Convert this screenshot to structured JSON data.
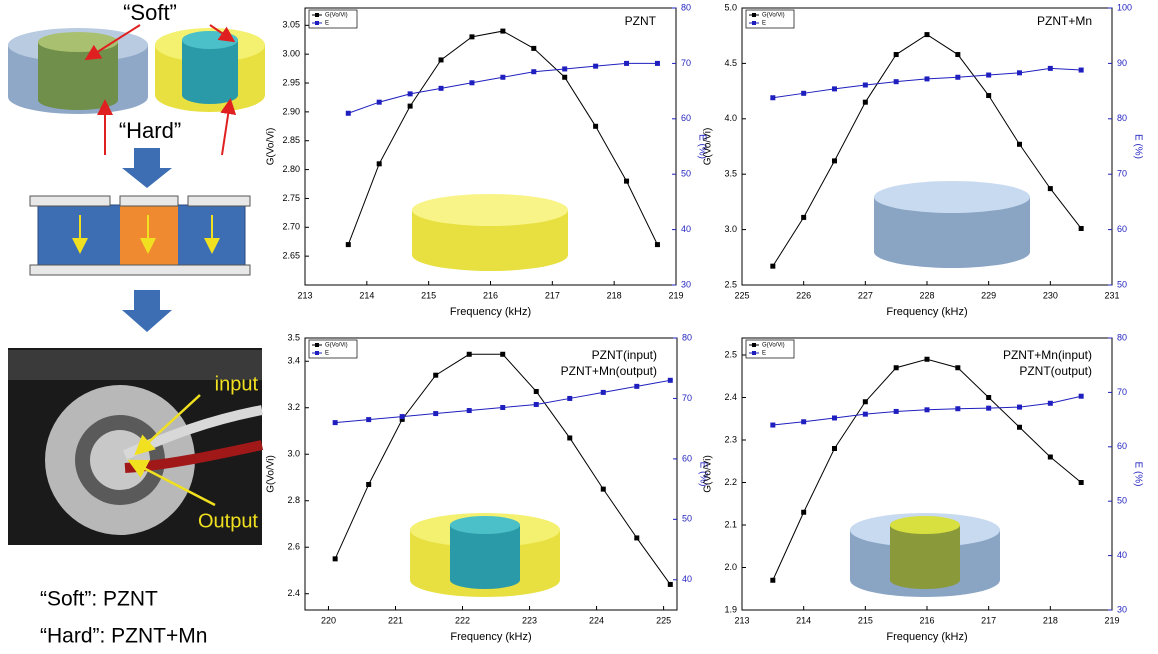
{
  "diagram": {
    "soft_label": "“Soft”",
    "hard_label": "“Hard”",
    "input_label": "input",
    "output_label": "Output",
    "legend_soft": "“Soft”: PZNT",
    "legend_hard": "“Hard”: PZNT+Mn"
  },
  "chart_data": [
    {
      "type": "line",
      "annotations": [
        "PZNT"
      ],
      "x": [
        213.7,
        214.2,
        214.7,
        215.2,
        215.7,
        216.2,
        216.7,
        217.2,
        217.7,
        218.2,
        218.7
      ],
      "series": [
        {
          "name": "G(Vo/Vi)",
          "color": "#000000",
          "values": [
            2.67,
            2.81,
            2.91,
            2.99,
            3.03,
            3.04,
            3.01,
            2.96,
            2.875,
            2.78,
            2.67
          ]
        },
        {
          "name": "E",
          "color": "#1f1fbf",
          "axis": "y2",
          "values": [
            61,
            63,
            64.5,
            65.5,
            66.5,
            67.5,
            68.5,
            69,
            69.5,
            70,
            70
          ]
        }
      ],
      "xlim": [
        213,
        219
      ],
      "xticks": [
        213,
        214,
        215,
        216,
        217,
        218,
        219
      ],
      "ylim": [
        2.6,
        3.08
      ],
      "yticks": [
        2.65,
        {
          "value": 2.7,
          "label": "2.70"
        },
        2.75,
        {
          "value": 2.8,
          "label": "2.80"
        },
        2.85,
        {
          "value": 2.9,
          "label": "2.90"
        },
        2.95,
        {
          "value": 3,
          "label": "3.00"
        },
        3.05
      ],
      "y2lim": [
        30,
        80
      ],
      "y2ticks": [
        30,
        40,
        50,
        60,
        70,
        80
      ],
      "x_label": "Frequency (kHz)",
      "y_label": "G(Vo/Vi)",
      "y2_label": "E (%)"
    },
    {
      "type": "line",
      "annotations": [
        "PZNT+Mn"
      ],
      "x": [
        225.5,
        226,
        226.5,
        227,
        227.5,
        228,
        228.5,
        229,
        229.5,
        230,
        230.5
      ],
      "series": [
        {
          "name": "G(Vo/Vi)",
          "color": "#000000",
          "values": [
            2.67,
            3.11,
            3.62,
            4.15,
            4.58,
            4.76,
            4.58,
            4.21,
            3.77,
            3.37,
            3.01
          ]
        },
        {
          "name": "E",
          "color": "#1f1fbf",
          "axis": "y2",
          "values": [
            83.8,
            84.6,
            85.4,
            86.1,
            86.7,
            87.2,
            87.5,
            87.9,
            88.3,
            89.1,
            88.8
          ]
        }
      ],
      "xlim": [
        225,
        231
      ],
      "xticks": [
        225,
        226,
        227,
        228,
        229,
        230,
        231
      ],
      "ylim": [
        2.5,
        5
      ],
      "yticks": [
        2.5,
        {
          "value": 3,
          "label": "3.0"
        },
        3.5,
        {
          "value": 4,
          "label": "4.0"
        },
        4.5,
        {
          "value": 5,
          "label": "5.0"
        }
      ],
      "y2lim": [
        50,
        100
      ],
      "y2ticks": [
        50,
        60,
        70,
        80,
        90,
        100
      ],
      "x_label": "Frequency (kHz)",
      "y_label": "G(Vo/Vi)",
      "y2_label": "E (%)"
    },
    {
      "type": "line",
      "annotations": [
        "PZNT(input)",
        "PZNT+Mn(output)"
      ],
      "x": [
        220.1,
        220.6,
        221.1,
        221.6,
        222.1,
        222.6,
        223.1,
        223.6,
        224.1,
        224.6,
        225.1
      ],
      "series": [
        {
          "name": "G(Vo/Vi)",
          "color": "#000000",
          "values": [
            2.55,
            2.87,
            3.15,
            3.34,
            3.43,
            3.43,
            3.27,
            3.07,
            2.85,
            2.64,
            2.44
          ]
        },
        {
          "name": "E",
          "color": "#1f1fbf",
          "axis": "y2",
          "values": [
            66,
            66.5,
            67,
            67.5,
            68,
            68.5,
            69,
            70,
            71,
            72,
            73
          ]
        }
      ],
      "xlim": [
        219.65,
        225.2
      ],
      "xticks": [
        220,
        221,
        222,
        223,
        224,
        225
      ],
      "ylim": [
        2.33,
        3.5
      ],
      "yticks": [
        2.4,
        2.6,
        2.8,
        {
          "value": 3,
          "label": "3.0"
        },
        3.2,
        3.4,
        3.5
      ],
      "y2lim": [
        35,
        80
      ],
      "y2ticks": [
        40,
        50,
        60,
        70,
        80
      ],
      "x_label": "Frequency (kHz)",
      "y_label": "G(Vo/Vi)",
      "y2_label": "E (%)"
    },
    {
      "type": "line",
      "annotations": [
        "PZNT+Mn(input)",
        "PZNT(output)"
      ],
      "x": [
        213.5,
        214,
        214.5,
        215,
        215.5,
        216,
        216.5,
        217,
        217.5,
        218,
        218.5
      ],
      "series": [
        {
          "name": "G(Vo/Vi)",
          "color": "#000000",
          "values": [
            1.97,
            2.13,
            2.28,
            2.39,
            2.47,
            2.49,
            2.47,
            2.4,
            2.33,
            2.26,
            2.2
          ]
        },
        {
          "name": "E",
          "color": "#1f1fbf",
          "axis": "y2",
          "values": [
            64,
            64.6,
            65.3,
            66,
            66.5,
            66.8,
            67,
            67.1,
            67.3,
            68,
            69.3
          ]
        }
      ],
      "xlim": [
        213,
        219
      ],
      "xticks": [
        213,
        214,
        215,
        216,
        217,
        218,
        219
      ],
      "ylim": [
        1.9,
        2.54
      ],
      "yticks": [
        1.9,
        {
          "value": 2,
          "label": "2.0"
        },
        2.1,
        2.2,
        2.3,
        2.4,
        2.5
      ],
      "y2lim": [
        30,
        80
      ],
      "y2ticks": [
        30,
        40,
        50,
        60,
        70,
        80
      ],
      "x_label": "Frequency (kHz)",
      "y_label": "G(Vo/Vi)",
      "y2_label": "E (%)"
    }
  ]
}
